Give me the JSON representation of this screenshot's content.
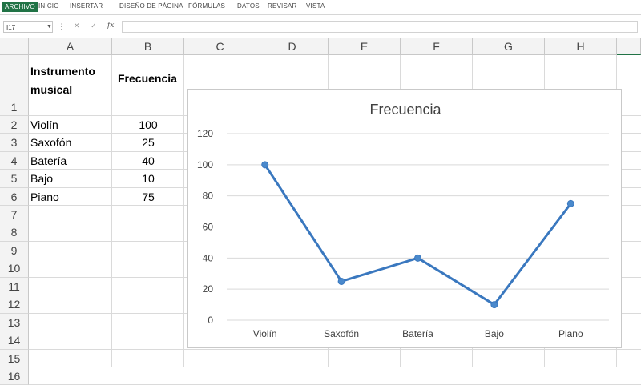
{
  "ribbon": {
    "tabs": [
      "ARCHIVO",
      "INICIO",
      "INSERTAR",
      "DISEÑO DE PÁGINA",
      "FÓRMULAS",
      "DATOS",
      "REVISAR",
      "VISTA"
    ]
  },
  "formula_bar": {
    "name_box": "I17",
    "fx_label": "fx",
    "value": ""
  },
  "sheet": {
    "columns": [
      "A",
      "B",
      "C",
      "D",
      "E",
      "F",
      "G",
      "H"
    ],
    "rows": [
      "1",
      "2",
      "3",
      "4",
      "5",
      "6",
      "7",
      "8",
      "9",
      "10",
      "11",
      "12",
      "13",
      "14",
      "15",
      "16"
    ],
    "header": {
      "instrument_line1": "Instrumento",
      "instrument_line2": "musical",
      "frequency": "Frecuencia"
    },
    "data": [
      {
        "instrument": "Violín",
        "frequency": "100"
      },
      {
        "instrument": "Saxofón",
        "frequency": "25"
      },
      {
        "instrument": "Batería",
        "frequency": "40"
      },
      {
        "instrument": "Bajo",
        "frequency": "10"
      },
      {
        "instrument": "Piano",
        "frequency": "75"
      }
    ]
  },
  "chart_data": {
    "type": "line",
    "title": "Frecuencia",
    "categories": [
      "Violín",
      "Saxofón",
      "Batería",
      "Bajo",
      "Piano"
    ],
    "series": [
      {
        "values": [
          100,
          25,
          40,
          10,
          75
        ]
      }
    ],
    "ylim": [
      0,
      120
    ],
    "yticks": [
      0,
      20,
      40,
      60,
      80,
      100,
      120
    ],
    "grid": true,
    "legend": "none",
    "colors": {
      "line": "#3a78bf",
      "marker": "#4a89cc",
      "grid": "#d9d9d9"
    }
  }
}
